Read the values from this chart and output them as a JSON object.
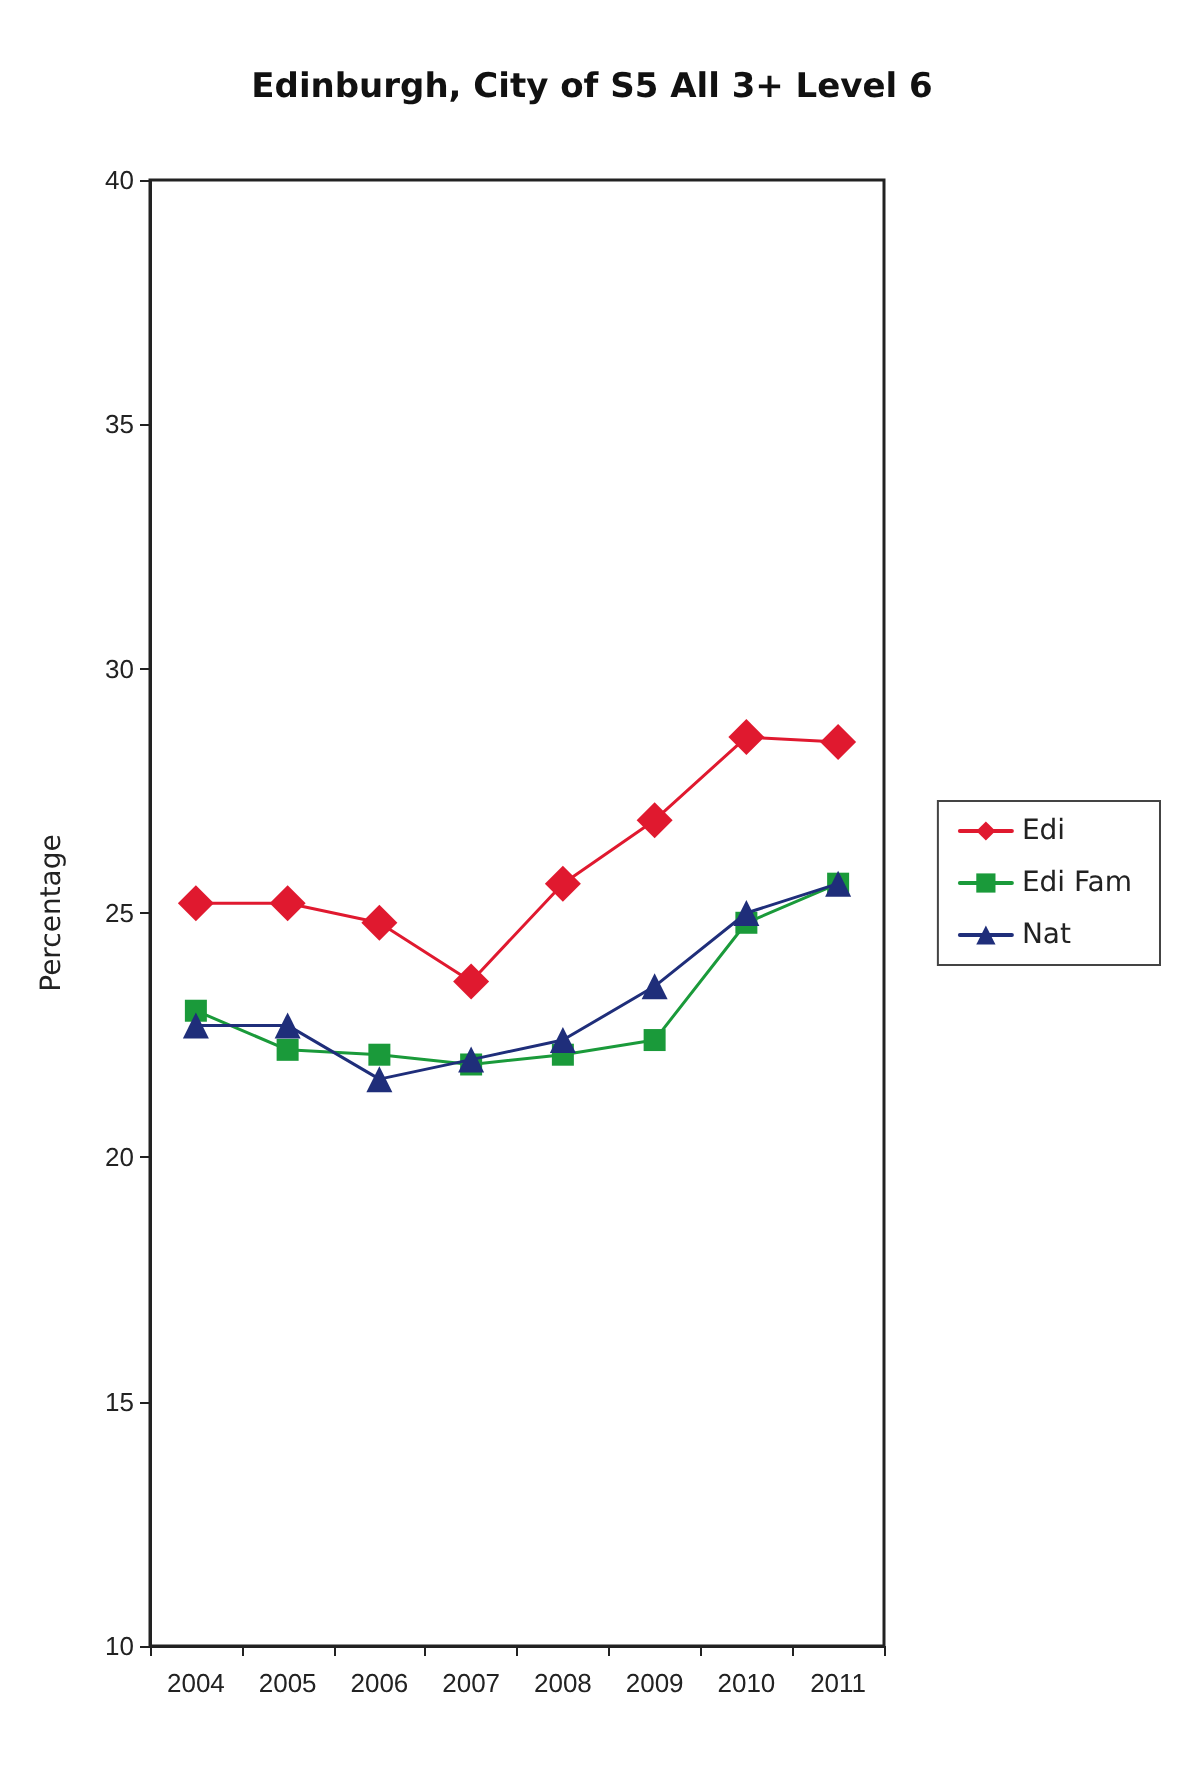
{
  "chart_data": {
    "type": "line",
    "title": "Edinburgh, City of S5 All 3+ Level 6",
    "ylabel": "Percentage",
    "categories": [
      "2004",
      "2005",
      "2006",
      "2007",
      "2008",
      "2009",
      "2010",
      "2011"
    ],
    "series": [
      {
        "name": "Edi",
        "color": "#e0192f",
        "marker": "diamond",
        "values": [
          25.2,
          25.2,
          24.8,
          23.6,
          25.6,
          26.9,
          28.6,
          28.5
        ]
      },
      {
        "name": "Edi Fam",
        "color": "#1a9a3a",
        "marker": "square",
        "values": [
          23.0,
          22.2,
          22.1,
          21.9,
          22.1,
          22.4,
          24.8,
          25.6
        ]
      },
      {
        "name": "Nat",
        "color": "#1f2e7a",
        "marker": "triangle",
        "values": [
          22.7,
          22.7,
          21.6,
          22.0,
          22.4,
          23.5,
          25.0,
          25.6
        ]
      }
    ],
    "ylim": [
      10,
      40
    ],
    "yticks": [
      10,
      15,
      20,
      25,
      30,
      35,
      40
    ],
    "grid": false,
    "legend": "right",
    "line_style": "solid"
  }
}
